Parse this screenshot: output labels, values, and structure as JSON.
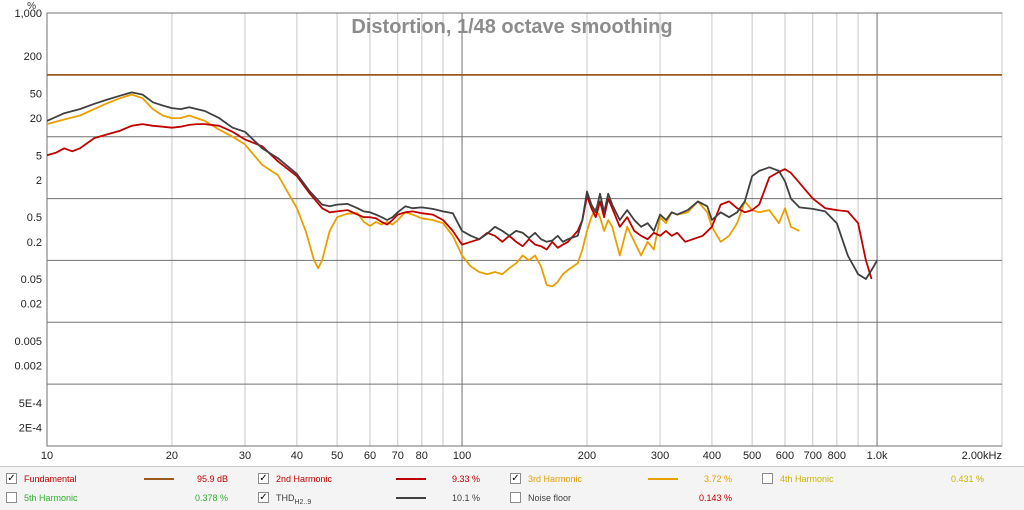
{
  "chart_data": {
    "type": "line",
    "title": "Distortion, 1/48 octave smoothing",
    "ylabel": "%",
    "x_scale": "log",
    "y_scale": "log",
    "xlim": [
      10,
      2000
    ],
    "ylim": [
      0.0001,
      1000
    ],
    "grid": true,
    "legend_placement": "bottom",
    "x_ticks": [
      {
        "v": 10,
        "label": "10"
      },
      {
        "v": 20,
        "label": "20"
      },
      {
        "v": 30,
        "label": "30"
      },
      {
        "v": 40,
        "label": "40"
      },
      {
        "v": 50,
        "label": "50"
      },
      {
        "v": 60,
        "label": "60"
      },
      {
        "v": 70,
        "label": "70"
      },
      {
        "v": 80,
        "label": "80"
      },
      {
        "v": 100,
        "label": "100"
      },
      {
        "v": 200,
        "label": "200"
      },
      {
        "v": 300,
        "label": "300"
      },
      {
        "v": 400,
        "label": "400"
      },
      {
        "v": 500,
        "label": "500"
      },
      {
        "v": 600,
        "label": "600"
      },
      {
        "v": 700,
        "label": "700"
      },
      {
        "v": 800,
        "label": "800"
      },
      {
        "v": 1000,
        "label": "1.0k"
      },
      {
        "v": 2000,
        "label": "2.00kHz"
      }
    ],
    "y_ticks": [
      {
        "v": 1000,
        "label": "1,000"
      },
      {
        "v": 200,
        "label": "200"
      },
      {
        "v": 50,
        "label": "50"
      },
      {
        "v": 20,
        "label": "20"
      },
      {
        "v": 5,
        "label": "5"
      },
      {
        "v": 2,
        "label": "2"
      },
      {
        "v": 0.5,
        "label": "0.5"
      },
      {
        "v": 0.2,
        "label": "0.2"
      },
      {
        "v": 0.05,
        "label": "0.05"
      },
      {
        "v": 0.02,
        "label": "0.02"
      },
      {
        "v": 0.005,
        "label": "0.005"
      },
      {
        "v": 0.002,
        "label": "0.002"
      },
      {
        "v": 0.0005,
        "label": "5E-4"
      },
      {
        "v": 0.0002,
        "label": "2E-4"
      }
    ],
    "major_gridlines_y": [
      1000,
      100,
      10,
      1,
      0.1,
      0.01,
      0.001,
      0.0001
    ],
    "series": [
      {
        "name": "Fundamental",
        "color": "#9a5a1e",
        "x": [
          10,
          2000
        ],
        "y": [
          100,
          100
        ]
      },
      {
        "name": "3rd Harmonic",
        "color": "#e8a000",
        "x": [
          10,
          11,
          12,
          13,
          14,
          15,
          16,
          17,
          18,
          19,
          20,
          21,
          22,
          24,
          26,
          28,
          30,
          33,
          36,
          40,
          42,
          44,
          45,
          46,
          48,
          50,
          53,
          56,
          58,
          60,
          62,
          64,
          66,
          68,
          70,
          73,
          76,
          80,
          85,
          90,
          95,
          100,
          105,
          110,
          115,
          120,
          125,
          130,
          135,
          140,
          145,
          150,
          155,
          160,
          165,
          170,
          175,
          180,
          190,
          195,
          200,
          205,
          210,
          215,
          220,
          225,
          230,
          240,
          250,
          260,
          270,
          280,
          290,
          300,
          310,
          320,
          330,
          350,
          370,
          390,
          400,
          420,
          440,
          460,
          480,
          500,
          520,
          550,
          580,
          600,
          620,
          650
        ],
        "y": [
          16,
          19,
          22,
          28,
          35,
          42,
          48,
          42,
          28,
          22,
          20,
          20,
          22,
          18,
          13,
          10,
          7.5,
          3.5,
          2.4,
          0.7,
          0.3,
          0.1,
          0.075,
          0.1,
          0.3,
          0.5,
          0.57,
          0.58,
          0.42,
          0.36,
          0.42,
          0.38,
          0.42,
          0.38,
          0.45,
          0.6,
          0.55,
          0.48,
          0.45,
          0.4,
          0.25,
          0.12,
          0.08,
          0.065,
          0.06,
          0.065,
          0.06,
          0.075,
          0.09,
          0.12,
          0.1,
          0.12,
          0.08,
          0.04,
          0.038,
          0.045,
          0.06,
          0.07,
          0.09,
          0.15,
          0.3,
          0.5,
          0.7,
          0.5,
          0.3,
          0.45,
          0.35,
          0.12,
          0.35,
          0.2,
          0.12,
          0.2,
          0.15,
          0.5,
          0.4,
          0.6,
          0.55,
          0.6,
          0.9,
          0.6,
          0.35,
          0.2,
          0.25,
          0.4,
          0.9,
          0.65,
          0.6,
          0.65,
          0.4,
          0.7,
          0.35,
          0.3
        ]
      },
      {
        "name": "2nd Harmonic",
        "color": "#c00000",
        "x": [
          10,
          10.5,
          11,
          11.5,
          12,
          13,
          14,
          15,
          16,
          17,
          18,
          19,
          20,
          21,
          22,
          23,
          24,
          26,
          28,
          30,
          33,
          36,
          40,
          43,
          46,
          48,
          50,
          53,
          56,
          58,
          60,
          62,
          64,
          66,
          68,
          70,
          73,
          76,
          80,
          85,
          90,
          95,
          100,
          105,
          110,
          115,
          120,
          125,
          130,
          135,
          140,
          145,
          150,
          155,
          160,
          165,
          170,
          175,
          180,
          190,
          195,
          200,
          205,
          210,
          215,
          220,
          225,
          230,
          240,
          250,
          260,
          270,
          280,
          290,
          300,
          310,
          320,
          330,
          345,
          360,
          380,
          400,
          420,
          440,
          460,
          480,
          500,
          520,
          550,
          580,
          600,
          620,
          650,
          700,
          750,
          800,
          850,
          900,
          940,
          970
        ],
        "y": [
          5,
          5.5,
          6.5,
          5.8,
          6.5,
          9.5,
          11,
          12.5,
          15,
          16,
          15,
          14.5,
          14,
          14.5,
          15.5,
          16,
          16,
          15,
          12,
          9,
          7,
          4,
          2.3,
          1.2,
          0.7,
          0.6,
          0.62,
          0.65,
          0.55,
          0.5,
          0.5,
          0.48,
          0.42,
          0.38,
          0.45,
          0.55,
          0.6,
          0.62,
          0.58,
          0.55,
          0.45,
          0.3,
          0.18,
          0.2,
          0.22,
          0.28,
          0.25,
          0.2,
          0.25,
          0.2,
          0.17,
          0.22,
          0.18,
          0.17,
          0.15,
          0.2,
          0.16,
          0.18,
          0.2,
          0.3,
          0.45,
          1.1,
          0.7,
          0.5,
          0.9,
          0.5,
          1.0,
          0.7,
          0.35,
          0.5,
          0.3,
          0.25,
          0.22,
          0.28,
          0.25,
          0.3,
          0.25,
          0.28,
          0.2,
          0.22,
          0.25,
          0.35,
          0.8,
          0.9,
          0.7,
          0.6,
          0.65,
          0.8,
          2.2,
          2.7,
          3.0,
          2.6,
          1.8,
          1.0,
          0.7,
          0.65,
          0.62,
          0.4,
          0.1,
          0.05
        ]
      },
      {
        "name": "THD",
        "color": "#404040",
        "x": [
          10,
          11,
          12,
          13,
          14,
          15,
          16,
          17,
          18,
          19,
          20,
          21,
          22,
          24,
          26,
          28,
          30,
          33,
          36,
          40,
          43,
          46,
          48,
          50,
          53,
          56,
          58,
          60,
          62,
          64,
          66,
          68,
          70,
          73,
          76,
          80,
          85,
          90,
          95,
          100,
          105,
          110,
          115,
          120,
          125,
          130,
          135,
          140,
          145,
          150,
          155,
          160,
          165,
          170,
          175,
          180,
          190,
          195,
          200,
          205,
          210,
          215,
          220,
          225,
          230,
          240,
          250,
          260,
          270,
          280,
          290,
          300,
          310,
          320,
          330,
          350,
          370,
          390,
          400,
          420,
          440,
          460,
          480,
          500,
          520,
          550,
          580,
          600,
          620,
          650,
          700,
          750,
          800,
          850,
          900,
          940,
          970,
          1000
        ],
        "y": [
          18,
          24,
          28,
          34,
          40,
          46,
          52,
          48,
          36,
          32,
          29,
          28,
          30,
          26,
          20,
          14,
          12,
          6.5,
          4.5,
          2.5,
          1.3,
          0.8,
          0.75,
          0.8,
          0.82,
          0.7,
          0.62,
          0.6,
          0.55,
          0.5,
          0.45,
          0.5,
          0.6,
          0.75,
          0.7,
          0.72,
          0.68,
          0.62,
          0.58,
          0.3,
          0.25,
          0.22,
          0.27,
          0.35,
          0.3,
          0.25,
          0.3,
          0.28,
          0.23,
          0.28,
          0.22,
          0.2,
          0.21,
          0.25,
          0.2,
          0.22,
          0.25,
          0.45,
          1.3,
          0.8,
          0.6,
          1.2,
          0.6,
          1.2,
          0.8,
          0.45,
          0.65,
          0.45,
          0.35,
          0.4,
          0.3,
          0.55,
          0.45,
          0.6,
          0.55,
          0.65,
          0.9,
          0.75,
          0.45,
          0.6,
          0.5,
          0.6,
          0.9,
          2.3,
          2.8,
          3.2,
          2.8,
          1.9,
          1.0,
          0.72,
          0.68,
          0.62,
          0.4,
          0.12,
          0.06,
          0.05,
          0.07,
          0.1
        ]
      }
    ]
  },
  "legend": {
    "row1": [
      {
        "checked": true,
        "name": "Fundamental",
        "name_color": "#c00000",
        "line_color": "#9a5a1e",
        "value": "95.9 dB",
        "value_color": "#c00000"
      },
      {
        "checked": true,
        "name": "2nd Harmonic",
        "name_color": "#c00000",
        "line_color": "#c00000",
        "value": "9.33 %",
        "value_color": "#c00000"
      },
      {
        "checked": true,
        "name": "3rd Harmonic",
        "name_color": "#e8a000",
        "line_color": "#e8a000",
        "value": "3.72 %",
        "value_color": "#e8a000"
      },
      {
        "checked": false,
        "name": "4th Harmonic",
        "name_color": "#c8b400",
        "line_color": "",
        "value": "0.431 %",
        "value_color": "#c8b400"
      }
    ],
    "row2": [
      {
        "checked": false,
        "name": "5th Harmonic",
        "name_color": "#30b030",
        "line_color": "",
        "value": "0.378 %",
        "value_color": "#30b030"
      },
      {
        "checked": true,
        "name": "THD",
        "name_sub": "H2..9",
        "name_color": "#404040",
        "line_color": "#404040",
        "value": "10.1 %",
        "value_color": "#404040"
      },
      {
        "checked": false,
        "name": "Noise floor",
        "name_color": "#404040",
        "line_color": "",
        "value": "0.143 %",
        "value_color": "#c00000"
      }
    ],
    "check_mark": "✓"
  }
}
